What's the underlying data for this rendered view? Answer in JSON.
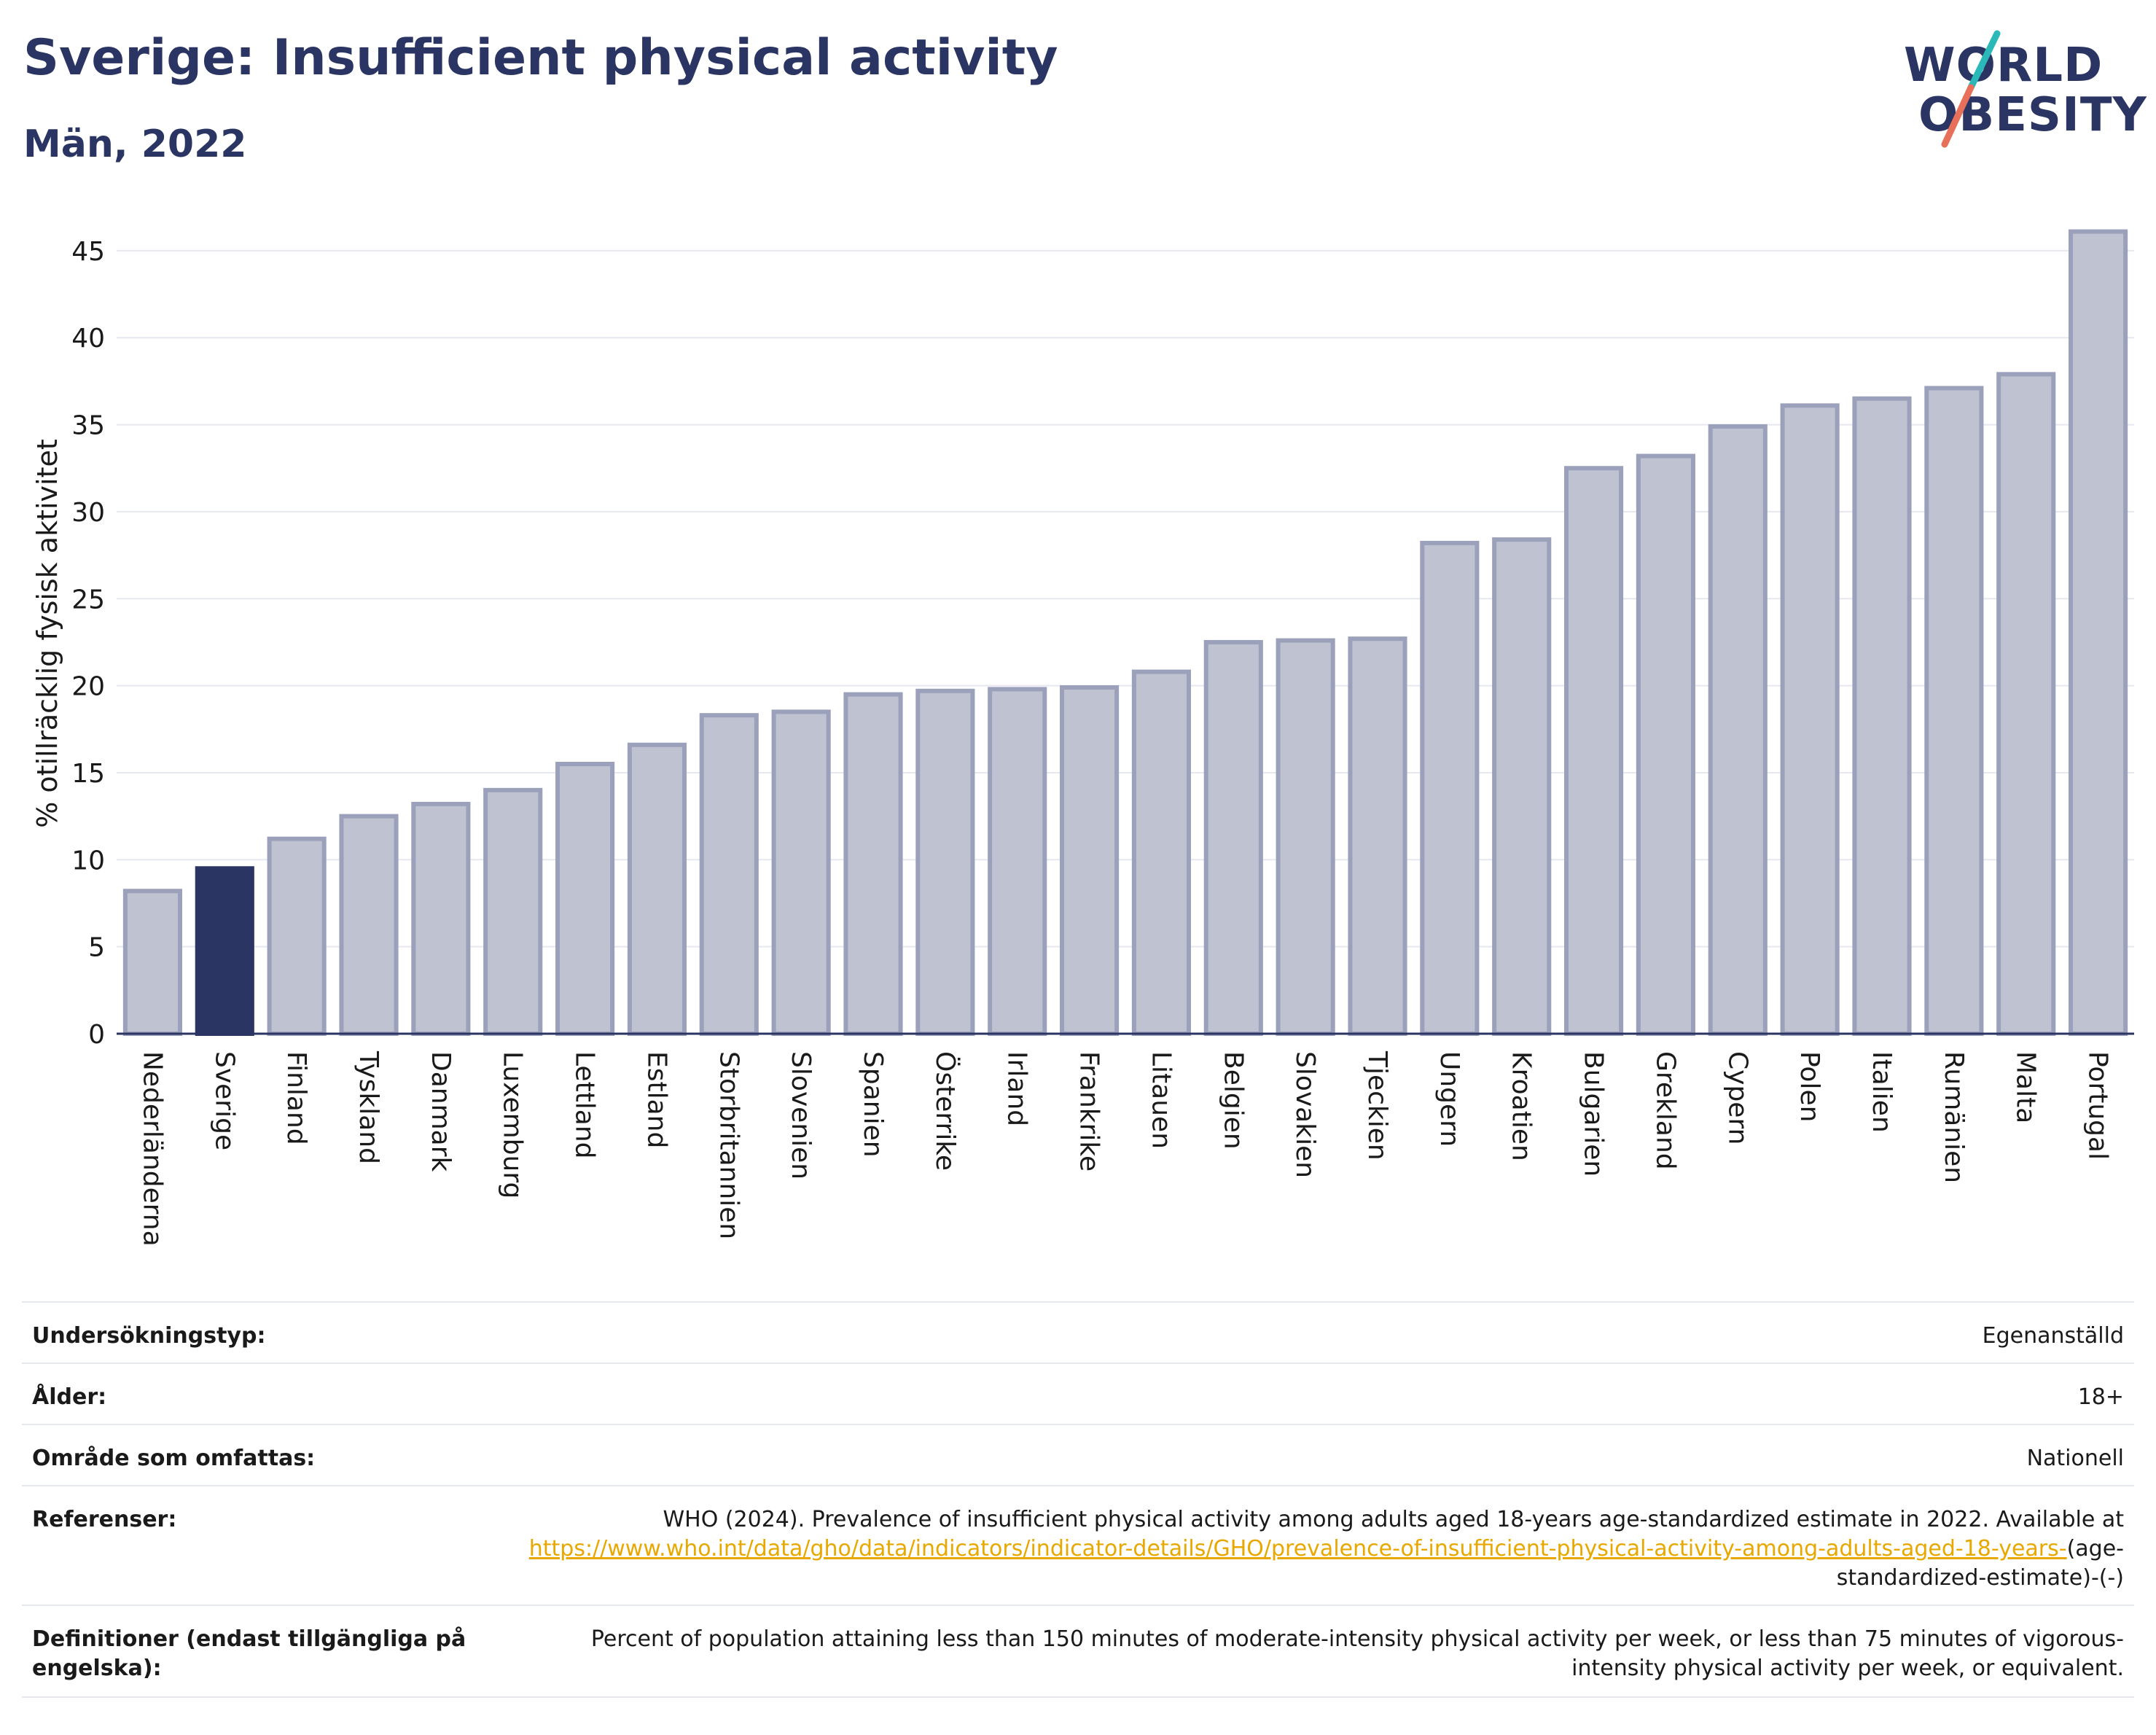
{
  "header": {
    "title": "Sverige: Insufficient physical activity",
    "subtitle": "Män, 2022"
  },
  "logo": {
    "line1": "WORLD",
    "line2": "OBESITY",
    "alt": "World Obesity logo"
  },
  "colors": {
    "highlight": "#2b3563",
    "bar_fill": "#bfc2d0",
    "bar_stroke": "#9ba1bb",
    "grid": "#e6e8f0",
    "link": "#e8a800",
    "logo_accent_teal": "#2ab8b8",
    "logo_accent_coral": "#e8705a"
  },
  "chart_data": {
    "type": "bar",
    "ylabel": "% otillräcklig fysisk aktivitet",
    "xlabel": "",
    "ylim": [
      0,
      46
    ],
    "yticks": [
      0,
      5,
      10,
      15,
      20,
      25,
      30,
      35,
      40,
      45
    ],
    "grid": true,
    "highlight": "Sverige",
    "categories": [
      "Nederländerna",
      "Sverige",
      "Finland",
      "Tyskland",
      "Danmark",
      "Luxemburg",
      "Lettland",
      "Estland",
      "Storbritannien",
      "Slovenien",
      "Spanien",
      "Österrike",
      "Irland",
      "Frankrike",
      "Litauen",
      "Belgien",
      "Slovakien",
      "Tjeckien",
      "Ungern",
      "Kroatien",
      "Bulgarien",
      "Grekland",
      "Cypern",
      "Polen",
      "Italien",
      "Rumänien",
      "Malta",
      "Portugal"
    ],
    "values": [
      8.2,
      9.5,
      11.2,
      12.5,
      13.2,
      14.0,
      15.5,
      16.6,
      18.3,
      18.5,
      19.5,
      19.7,
      19.8,
      19.9,
      20.8,
      22.5,
      22.6,
      22.7,
      28.2,
      28.4,
      32.5,
      33.2,
      34.9,
      36.1,
      36.5,
      37.1,
      37.9,
      46.1
    ]
  },
  "meta": {
    "survey_type": {
      "label": "Undersökningstyp:",
      "value": "Egenanställd"
    },
    "age": {
      "label": "Ålder:",
      "value": "18+"
    },
    "coverage": {
      "label": "Område som omfattas:",
      "value": "Nationell"
    },
    "references": {
      "label": "Referenser:",
      "text": "WHO (2024). Prevalence of insufficient physical activity among adults aged 18-years age-standardized estimate in 2022. Available at",
      "link": "https://www.who.int/data/gho/data/indicators/indicator-details/GHO/prevalence-of-insufficient-physical-activity-among-adults-aged-18-years-",
      "suffix": "(age-standardized-estimate)-(-)"
    },
    "definitions": {
      "label": "Definitioner (endast tillgängliga på engelska):",
      "value": "Percent of population attaining less than 150 minutes of moderate-intensity physical activity per week, or less than 75 minutes of vigorous-intensity physical activity per week, or equivalent."
    }
  }
}
